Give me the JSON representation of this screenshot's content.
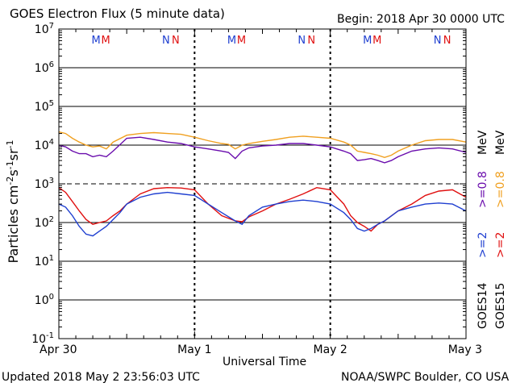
{
  "header": {
    "title": "GOES Electron Flux (5 minute data)",
    "begin": "Begin: 2018 Apr 30 0000 UTC"
  },
  "footer": {
    "updated": "Updated 2018 May  2 23:56:03 UTC",
    "credit": "NOAA/SWPC Boulder, CO USA"
  },
  "colors": {
    "goes14_high": "#6a0dad",
    "goes15_high": "#f0a020",
    "goes14_low": "#1f3fd0",
    "goes15_low": "#e01010",
    "m_marker_1": "#1f3fd0",
    "m_marker_2": "#e01010"
  },
  "side_legend": {
    "goes14": "GOES14",
    "goes15": "GOES15",
    "ge2": ">=2",
    "ge08": ">=0.8",
    "mev": "MeV"
  },
  "chart_data": {
    "type": "line",
    "title": "GOES Electron Flux (5 minute data)",
    "xlabel": "Universal Time",
    "ylabel": "Particles cm-2s-1sr-1",
    "y_scale": "log",
    "ylim": [
      0.1,
      10000000
    ],
    "xlim": [
      0,
      3
    ],
    "x_ticks": [
      "Apr 30",
      "May 1",
      "May 2",
      "May 3"
    ],
    "y_ticks": [
      {
        "base": "10",
        "exp": "7"
      },
      {
        "base": "10",
        "exp": "6"
      },
      {
        "base": "10",
        "exp": "5"
      },
      {
        "base": "10",
        "exp": "4"
      },
      {
        "base": "10",
        "exp": "3"
      },
      {
        "base": "10",
        "exp": "2"
      },
      {
        "base": "10",
        "exp": "1"
      },
      {
        "base": "10",
        "exp": "0"
      },
      {
        "base": "10",
        "exp": "-1"
      }
    ],
    "threshold": {
      "value": 1000,
      "style": "dashed"
    },
    "grid": true,
    "day_markers": [
      {
        "day": 0.3,
        "labels": [
          {
            "text": "M",
            "color": "#1f3fd0"
          },
          {
            "text": "M",
            "color": "#e01010"
          }
        ]
      },
      {
        "day": 0.82,
        "labels": [
          {
            "text": "N",
            "color": "#1f3fd0"
          },
          {
            "text": "N",
            "color": "#e01010"
          }
        ]
      },
      {
        "day": 1.3,
        "labels": [
          {
            "text": "M",
            "color": "#1f3fd0"
          },
          {
            "text": "M",
            "color": "#e01010"
          }
        ]
      },
      {
        "day": 1.82,
        "labels": [
          {
            "text": "N",
            "color": "#1f3fd0"
          },
          {
            "text": "N",
            "color": "#e01010"
          }
        ]
      },
      {
        "day": 2.3,
        "labels": [
          {
            "text": "M",
            "color": "#1f3fd0"
          },
          {
            "text": "M",
            "color": "#e01010"
          }
        ]
      },
      {
        "day": 2.82,
        "labels": [
          {
            "text": "N",
            "color": "#1f3fd0"
          },
          {
            "text": "N",
            "color": "#e01010"
          }
        ]
      }
    ],
    "series": [
      {
        "name": "GOES15 >=0.8 MeV",
        "color": "#f0a020",
        "x": [
          0.0,
          0.05,
          0.1,
          0.15,
          0.2,
          0.25,
          0.3,
          0.35,
          0.4,
          0.5,
          0.6,
          0.7,
          0.8,
          0.9,
          1.0,
          1.1,
          1.2,
          1.25,
          1.3,
          1.35,
          1.4,
          1.5,
          1.6,
          1.7,
          1.8,
          1.9,
          2.0,
          2.1,
          2.15,
          2.2,
          2.25,
          2.3,
          2.35,
          2.4,
          2.45,
          2.5,
          2.6,
          2.7,
          2.8,
          2.9,
          3.0
        ],
        "y": [
          22000,
          20000,
          15000,
          12000,
          10000,
          9000,
          9500,
          8000,
          12000,
          18000,
          20000,
          21000,
          20000,
          19000,
          16000,
          13000,
          11000,
          10500,
          8000,
          10000,
          11000,
          12500,
          14000,
          16000,
          17000,
          16000,
          15000,
          12000,
          10000,
          7000,
          6500,
          6000,
          5500,
          4800,
          5500,
          7000,
          10000,
          13000,
          14000,
          14000,
          12000
        ]
      },
      {
        "name": "GOES14 >=0.8 MeV",
        "color": "#6a0dad",
        "x": [
          0.0,
          0.05,
          0.1,
          0.15,
          0.2,
          0.25,
          0.3,
          0.35,
          0.4,
          0.5,
          0.6,
          0.7,
          0.8,
          0.9,
          1.0,
          1.1,
          1.2,
          1.25,
          1.3,
          1.35,
          1.4,
          1.5,
          1.6,
          1.7,
          1.8,
          1.9,
          2.0,
          2.1,
          2.15,
          2.2,
          2.25,
          2.3,
          2.35,
          2.4,
          2.45,
          2.5,
          2.6,
          2.7,
          2.8,
          2.9,
          3.0
        ],
        "y": [
          10000,
          9000,
          7000,
          6000,
          6000,
          5000,
          5500,
          5000,
          7000,
          15000,
          16000,
          14000,
          12000,
          11000,
          9000,
          8000,
          7000,
          6500,
          4500,
          7000,
          8500,
          9500,
          10000,
          11000,
          11000,
          10000,
          9000,
          7000,
          6000,
          4000,
          4200,
          4500,
          4000,
          3500,
          4000,
          5000,
          7000,
          8000,
          8500,
          8000,
          6500
        ]
      },
      {
        "name": "GOES15 >=2 MeV",
        "color": "#e01010",
        "x": [
          0.0,
          0.05,
          0.1,
          0.15,
          0.2,
          0.25,
          0.3,
          0.35,
          0.4,
          0.45,
          0.5,
          0.6,
          0.7,
          0.8,
          0.9,
          1.0,
          1.1,
          1.2,
          1.3,
          1.35,
          1.4,
          1.5,
          1.6,
          1.7,
          1.8,
          1.9,
          2.0,
          2.1,
          2.15,
          2.2,
          2.25,
          2.3,
          2.35,
          2.4,
          2.5,
          2.6,
          2.7,
          2.8,
          2.9,
          3.0
        ],
        "y": [
          800,
          600,
          350,
          200,
          120,
          90,
          100,
          110,
          150,
          200,
          300,
          550,
          750,
          800,
          780,
          700,
          300,
          150,
          110,
          105,
          140,
          200,
          300,
          400,
          550,
          800,
          700,
          300,
          150,
          100,
          80,
          60,
          90,
          110,
          200,
          300,
          500,
          650,
          700,
          450
        ]
      },
      {
        "name": "GOES14 >=2 MeV",
        "color": "#1f3fd0",
        "x": [
          0.0,
          0.05,
          0.1,
          0.15,
          0.2,
          0.25,
          0.3,
          0.35,
          0.4,
          0.45,
          0.5,
          0.6,
          0.7,
          0.8,
          0.9,
          1.0,
          1.1,
          1.2,
          1.3,
          1.35,
          1.4,
          1.5,
          1.6,
          1.7,
          1.8,
          1.9,
          2.0,
          2.1,
          2.15,
          2.2,
          2.25,
          2.3,
          2.35,
          2.4,
          2.5,
          2.6,
          2.7,
          2.8,
          2.9,
          3.0
        ],
        "y": [
          300,
          250,
          150,
          80,
          50,
          45,
          60,
          80,
          120,
          180,
          300,
          450,
          550,
          600,
          550,
          500,
          300,
          180,
          110,
          90,
          150,
          250,
          300,
          350,
          380,
          350,
          300,
          180,
          120,
          70,
          60,
          70,
          90,
          110,
          200,
          250,
          300,
          320,
          300,
          200
        ]
      }
    ]
  }
}
